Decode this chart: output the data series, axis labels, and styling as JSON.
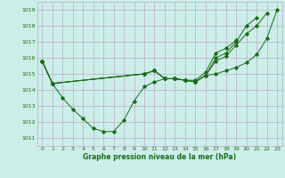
{
  "background_color": "#cceee8",
  "grid_color": "#bbaacc",
  "line_color": "#1a6b1a",
  "xlabel": "Graphe pression niveau de la mer (hPa)",
  "ylim": [
    1010.5,
    1019.5
  ],
  "xlim": [
    -0.5,
    23.5
  ],
  "yticks": [
    1011,
    1012,
    1013,
    1014,
    1015,
    1016,
    1017,
    1018,
    1019
  ],
  "xticks": [
    0,
    1,
    2,
    3,
    4,
    5,
    6,
    7,
    8,
    9,
    10,
    11,
    12,
    13,
    14,
    15,
    16,
    17,
    18,
    19,
    20,
    21,
    22,
    23
  ],
  "series": [
    [
      1015.8,
      1014.4,
      null,
      null,
      null,
      null,
      null,
      null,
      null,
      null,
      1015.0,
      1015.2,
      1014.7,
      1014.7,
      1014.6,
      1014.6,
      1015.1,
      1016.3,
      1016.6,
      1017.1,
      null,
      null,
      null,
      null
    ],
    [
      1015.8,
      1014.4,
      null,
      null,
      null,
      null,
      null,
      null,
      null,
      null,
      1015.0,
      1015.2,
      1014.7,
      1014.7,
      1014.6,
      1014.5,
      1014.9,
      1016.0,
      1016.3,
      1017.0,
      1018.0,
      1018.5,
      null,
      null
    ],
    [
      1015.8,
      1014.4,
      null,
      null,
      null,
      null,
      null,
      null,
      null,
      null,
      1015.0,
      1015.2,
      1014.7,
      1014.7,
      1014.6,
      1014.5,
      1014.9,
      1015.8,
      1016.1,
      1016.8,
      1017.5,
      1018.0,
      1018.8,
      null
    ],
    [
      1015.8,
      1014.4,
      1013.5,
      1012.8,
      1012.2,
      1011.6,
      1011.4,
      1011.4,
      1012.1,
      1013.3,
      1014.2,
      1014.5,
      1014.7,
      1014.7,
      1014.6,
      1014.5,
      1014.9,
      1015.0,
      1015.2,
      1015.4,
      1015.7,
      1016.2,
      1017.2,
      1019.0
    ]
  ]
}
